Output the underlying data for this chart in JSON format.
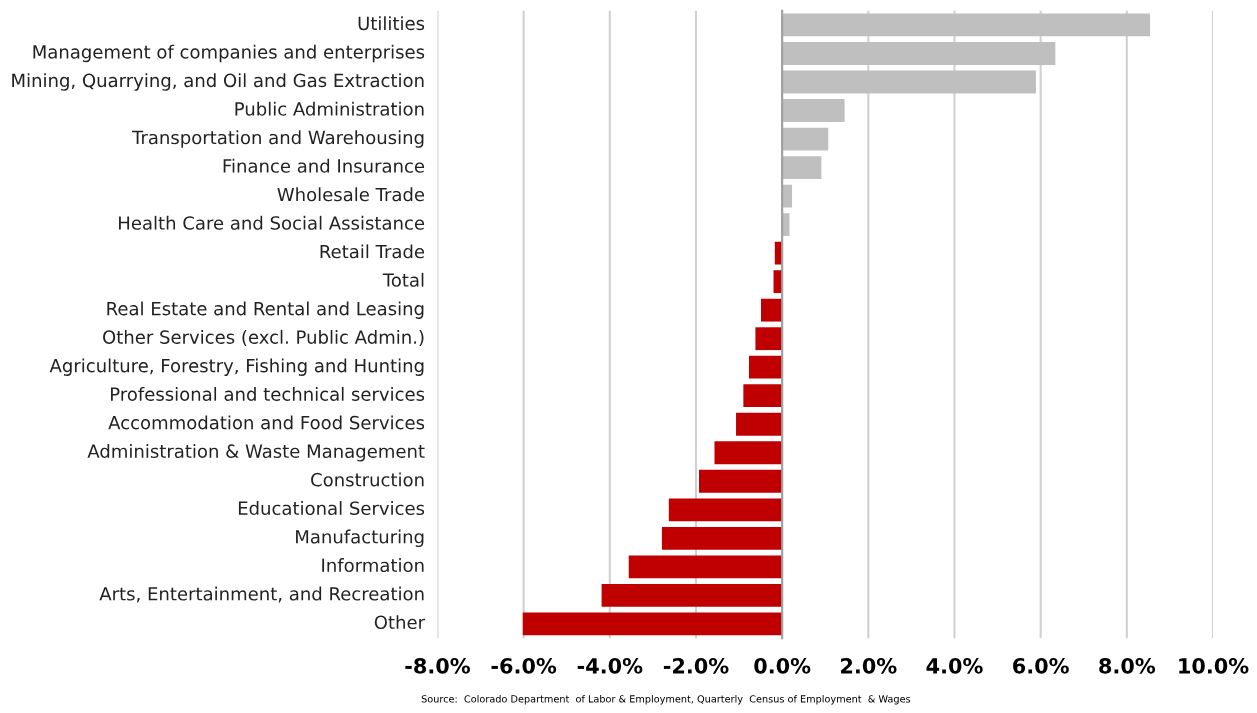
{
  "chart_data": {
    "type": "bar",
    "orientation": "horizontal",
    "categories": [
      "Utilities",
      "Management of companies and enterprises",
      "Mining, Quarrying, and Oil and Gas Extraction",
      "Public Administration",
      "Transportation and Warehousing",
      "Finance and Insurance",
      "Wholesale Trade",
      "Health Care and Social Assistance",
      "Retail Trade",
      "Total",
      "Real Estate and Rental and Leasing",
      "Other Services (excl. Public Admin.)",
      "Agriculture, Forestry, Fishing and Hunting",
      "Professional and technical services",
      "Accommodation and Food Services",
      "Administration & Waste Management",
      "Construction",
      "Educational Services",
      "Manufacturing",
      "Information",
      "Arts, Entertainment, and Recreation",
      "Other"
    ],
    "values": [
      8.54,
      6.34,
      5.89,
      1.45,
      1.07,
      0.91,
      0.23,
      0.17,
      -0.17,
      -0.2,
      -0.49,
      -0.62,
      -0.77,
      -0.9,
      -1.07,
      -1.57,
      -1.93,
      -2.63,
      -2.79,
      -3.56,
      -4.19,
      -6.02
    ],
    "colors": [
      "#bfbfbf",
      "#bfbfbf",
      "#bfbfbf",
      "#bfbfbf",
      "#bfbfbf",
      "#bfbfbf",
      "#bfbfbf",
      "#bfbfbf",
      "#c00000",
      "#c00000",
      "#c00000",
      "#c00000",
      "#c00000",
      "#c00000",
      "#c00000",
      "#c00000",
      "#c00000",
      "#c00000",
      "#c00000",
      "#c00000",
      "#c00000",
      "#c00000"
    ],
    "xlim": [
      -8,
      10
    ],
    "xticks": [
      {
        "value": -8,
        "label": "-8.0%"
      },
      {
        "value": -6,
        "label": "-6.0%"
      },
      {
        "value": -4,
        "label": "-4.0%"
      },
      {
        "value": -2,
        "label": "-2.0%"
      },
      {
        "value": 0,
        "label": "0.0%"
      },
      {
        "value": 2,
        "label": "2.0%"
      },
      {
        "value": 4,
        "label": "4.0%"
      },
      {
        "value": 6,
        "label": "6.0%"
      },
      {
        "value": 8,
        "label": "8.0%"
      },
      {
        "value": 10,
        "label": "10.0%"
      }
    ],
    "grid": "x",
    "annotations": [
      "Source:  Colorado Department  of Labor & Employment, Quarterly  Census of Employment  & Wages"
    ]
  }
}
